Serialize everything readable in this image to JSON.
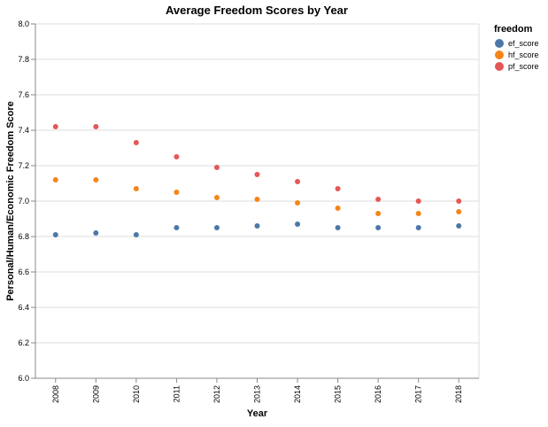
{
  "chart_data": {
    "type": "scatter",
    "title": "Average Freedom Scores by Year",
    "xlabel": "Year",
    "ylabel": "Personal/Human/Economic Freedom Score",
    "x": [
      "2008",
      "2009",
      "2010",
      "2011",
      "2012",
      "2013",
      "2014",
      "2015",
      "2016",
      "2017",
      "2018"
    ],
    "ylim": [
      6.0,
      8.0
    ],
    "yticks": [
      "6.0",
      "6.2",
      "6.4",
      "6.6",
      "6.8",
      "7.0",
      "7.2",
      "7.4",
      "7.6",
      "7.8",
      "8.0"
    ],
    "grid": true,
    "legend": {
      "title": "freedom",
      "position": "top-right"
    },
    "series": [
      {
        "name": "ef_score",
        "color": "#4c78a8",
        "values": [
          6.81,
          6.82,
          6.81,
          6.85,
          6.85,
          6.86,
          6.87,
          6.85,
          6.85,
          6.85,
          6.86
        ]
      },
      {
        "name": "hf_score",
        "color": "#f58518",
        "values": [
          7.12,
          7.12,
          7.07,
          7.05,
          7.02,
          7.01,
          6.99,
          6.96,
          6.93,
          6.93,
          6.94
        ]
      },
      {
        "name": "pf_score",
        "color": "#e45756",
        "values": [
          7.42,
          7.42,
          7.33,
          7.25,
          7.19,
          7.15,
          7.11,
          7.07,
          7.01,
          7.0,
          7.0
        ]
      }
    ]
  }
}
